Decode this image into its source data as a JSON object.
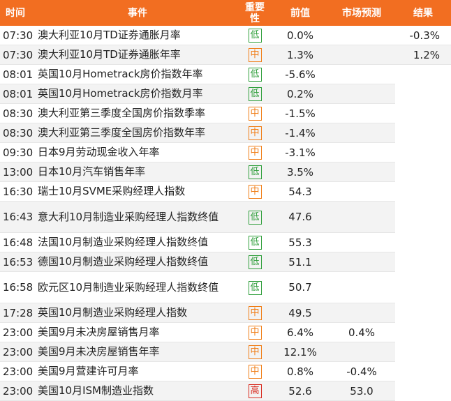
{
  "headers": {
    "time": "时间",
    "event": "事件",
    "importance_line1": "重要",
    "importance_line2": "性",
    "previous": "前值",
    "forecast": "市场预测",
    "result": "结果"
  },
  "colors": {
    "header_bg": "#f26e21",
    "low": "#2e9e3a",
    "mid": "#f07d16",
    "high": "#d8281c"
  },
  "rows": [
    {
      "time": "07:30",
      "event": "澳大利亚10月TD证券通胀月率",
      "importance": "低",
      "level": "low",
      "previous": "0.0%",
      "forecast": "",
      "result": "-0.3%"
    },
    {
      "time": "07:30",
      "event": "澳大利亚10月TD证券通胀年率",
      "importance": "中",
      "level": "mid",
      "previous": "1.3%",
      "forecast": "",
      "result": "1.2%"
    },
    {
      "time": "08:01",
      "event": "英国10月Hometrack房价指数年率",
      "importance": "低",
      "level": "low",
      "previous": "-5.6%",
      "forecast": "",
      "result": ""
    },
    {
      "time": "08:01",
      "event": "英国10月Hometrack房价指数月率",
      "importance": "低",
      "level": "low",
      "previous": "0.2%",
      "forecast": "",
      "result": ""
    },
    {
      "time": "08:30",
      "event": "澳大利亚第三季度全国房价指数季率",
      "importance": "中",
      "level": "mid",
      "previous": "-1.5%",
      "forecast": "",
      "result": ""
    },
    {
      "time": "08:30",
      "event": "澳大利亚第三季度全国房价指数年率",
      "importance": "中",
      "level": "mid",
      "previous": "-1.4%",
      "forecast": "",
      "result": ""
    },
    {
      "time": "09:30",
      "event": "日本9月劳动现金收入年率",
      "importance": "中",
      "level": "mid",
      "previous": "-3.1%",
      "forecast": "",
      "result": ""
    },
    {
      "time": "13:00",
      "event": "日本10月汽车销售年率",
      "importance": "低",
      "level": "low",
      "previous": "3.5%",
      "forecast": "",
      "result": ""
    },
    {
      "time": "16:30",
      "event": "瑞士10月SVME采购经理人指数",
      "importance": "中",
      "level": "mid",
      "previous": "54.3",
      "forecast": "",
      "result": ""
    },
    {
      "time": "16:43",
      "event": "意大利10月制造业采购经理人指数终值",
      "importance": "低",
      "level": "low",
      "previous": "47.6",
      "forecast": "",
      "result": "",
      "tall": true
    },
    {
      "time": "16:48",
      "event": "法国10月制造业采购经理人指数终值",
      "importance": "低",
      "level": "low",
      "previous": "55.3",
      "forecast": "",
      "result": ""
    },
    {
      "time": "16:53",
      "event": "德国10月制造业采购经理人指数终值",
      "importance": "低",
      "level": "low",
      "previous": "51.1",
      "forecast": "",
      "result": ""
    },
    {
      "time": "16:58",
      "event": "欧元区10月制造业采购经理人指数终值",
      "importance": "低",
      "level": "low",
      "previous": "50.7",
      "forecast": "",
      "result": "",
      "tall": true
    },
    {
      "time": "17:28",
      "event": "英国10月制造业采购经理人指数",
      "importance": "中",
      "level": "mid",
      "previous": "49.5",
      "forecast": "",
      "result": ""
    },
    {
      "time": "23:00",
      "event": "美国9月未决房屋销售月率",
      "importance": "中",
      "level": "mid",
      "previous": "6.4%",
      "forecast": "0.4%",
      "result": ""
    },
    {
      "time": "23:00",
      "event": "美国9月未决房屋销售年率",
      "importance": "中",
      "level": "mid",
      "previous": "12.1%",
      "forecast": "",
      "result": ""
    },
    {
      "time": "23:00",
      "event": "美国9月营建许可月率",
      "importance": "中",
      "level": "mid",
      "previous": "0.8%",
      "forecast": "-0.4%",
      "result": ""
    },
    {
      "time": "23:00",
      "event": "美国10月ISM制造业指数",
      "importance": "高",
      "level": "high",
      "previous": "52.6",
      "forecast": "53.0",
      "result": ""
    }
  ]
}
